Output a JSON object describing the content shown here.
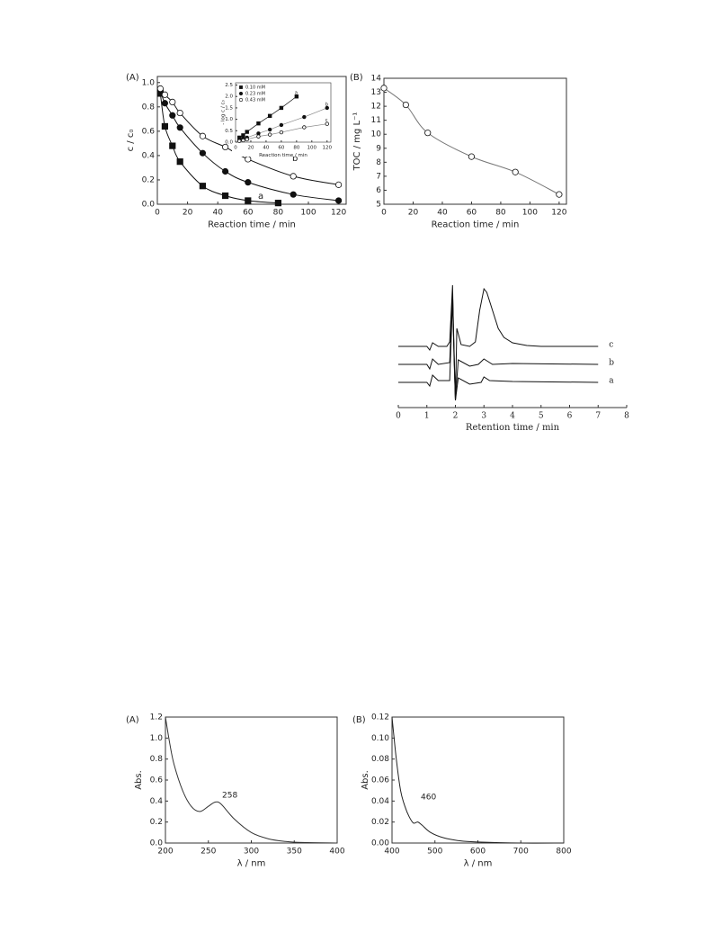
{
  "chart_data": [
    {
      "type": "scatter",
      "panel_label": "(A)",
      "xlabel": "Reaction time / min",
      "ylabel": "c / c₀",
      "frame": true,
      "xlim": [
        0,
        125
      ],
      "ylim": [
        0,
        1.05
      ],
      "xticks": [
        0,
        20,
        40,
        60,
        80,
        100,
        120
      ],
      "yticks": [
        {
          "value": 0,
          "label": "0.0"
        },
        {
          "value": 0.2,
          "label": "0.2"
        },
        {
          "value": 0.4,
          "label": "0.4"
        },
        {
          "value": 0.6,
          "label": "0.6"
        },
        {
          "value": 0.8,
          "label": "0.8"
        },
        {
          "value": 1.0,
          "label": "1.0"
        }
      ],
      "series": [
        {
          "name": "a",
          "marker": "square",
          "filled": true,
          "color": "#111",
          "line_color": "#111",
          "x": [
            2,
            5,
            10,
            15,
            30,
            45,
            60,
            80
          ],
          "values": [
            0.91,
            0.64,
            0.48,
            0.35,
            0.15,
            0.07,
            0.03,
            0.01
          ]
        },
        {
          "name": "b",
          "marker": "circle",
          "filled": true,
          "color": "#111",
          "line_color": "#111",
          "x": [
            2,
            5,
            10,
            15,
            30,
            45,
            60,
            90,
            120
          ],
          "values": [
            0.93,
            0.83,
            0.73,
            0.63,
            0.42,
            0.27,
            0.18,
            0.08,
            0.03
          ]
        },
        {
          "name": "c",
          "marker": "circle",
          "filled": false,
          "color": "#111",
          "line_color": "#111",
          "x": [
            2,
            5,
            10,
            15,
            30,
            45,
            60,
            90,
            120
          ],
          "values": [
            0.95,
            0.9,
            0.84,
            0.75,
            0.56,
            0.47,
            0.37,
            0.23,
            0.16
          ]
        }
      ]
    },
    {
      "type": "scatter",
      "ylabel": "- log c / c₀",
      "xlabel": "Reaction time / min",
      "frame": true,
      "legend": "upper left",
      "xlim": [
        0,
        125
      ],
      "ylim": [
        0,
        2.6
      ],
      "xticks": [
        0,
        20,
        40,
        60,
        80,
        100,
        120
      ],
      "yticks": [
        {
          "value": 0,
          "label": "0.0"
        },
        {
          "value": 0.5,
          "label": "0.5"
        },
        {
          "value": 1.0,
          "label": "1.0"
        },
        {
          "value": 1.5,
          "label": "1.5"
        },
        {
          "value": 2.0,
          "label": "2.0"
        },
        {
          "value": 2.5,
          "label": "2.5"
        }
      ],
      "series": [
        {
          "name": "0.10 mM",
          "label": "a",
          "marker": "square",
          "filled": true,
          "color": "#111",
          "line_color": "#111",
          "x": [
            5,
            10,
            15,
            30,
            45,
            60,
            80
          ],
          "values": [
            0.2,
            0.3,
            0.45,
            0.82,
            1.15,
            1.5,
            2.0
          ]
        },
        {
          "name": "0.23 mM",
          "label": "b",
          "marker": "circle",
          "filled": true,
          "color": "#111",
          "line_color": "#888",
          "x": [
            5,
            10,
            15,
            30,
            45,
            60,
            90,
            120
          ],
          "values": [
            0.1,
            0.15,
            0.2,
            0.38,
            0.55,
            0.75,
            1.1,
            1.5
          ]
        },
        {
          "name": "0.43 mM",
          "label": "c",
          "marker": "circle",
          "filled": false,
          "color": "#111",
          "line_color": "#888",
          "x": [
            5,
            10,
            15,
            30,
            45,
            60,
            90,
            120
          ],
          "values": [
            0.05,
            0.08,
            0.12,
            0.25,
            0.33,
            0.43,
            0.65,
            0.8
          ]
        }
      ]
    },
    {
      "type": "scatter",
      "panel_label": "(B)",
      "xlabel": "Reaction time / min",
      "ylabel": "TOC / mg L⁻¹",
      "frame": true,
      "xlim": [
        0,
        125
      ],
      "ylim": [
        5,
        14
      ],
      "xticks": [
        0,
        20,
        40,
        60,
        80,
        100,
        120
      ],
      "yticks": [
        5,
        6,
        7,
        8,
        9,
        10,
        11,
        12,
        13,
        14
      ],
      "series": [
        {
          "marker": "circle",
          "filled": false,
          "color": "#111",
          "line_color": "#777",
          "x": [
            0,
            15,
            30,
            60,
            90,
            120
          ],
          "values": [
            13.3,
            12.1,
            10.1,
            8.4,
            7.3,
            5.7
          ]
        }
      ]
    },
    {
      "type": "line",
      "xlabel": "Retention time / min",
      "frame": false,
      "font": "serif",
      "xlim": [
        0,
        8
      ],
      "ylim": [
        -25,
        110
      ],
      "xticks": [
        0,
        1,
        2,
        3,
        4,
        5,
        6,
        7,
        8
      ],
      "series": [
        {
          "name": "c",
          "color": "#111",
          "x": [
            0,
            1.0,
            1.1,
            1.2,
            1.4,
            1.7,
            1.8,
            1.9,
            1.95,
            2.0,
            2.05,
            2.2,
            2.5,
            2.7,
            2.85,
            3.0,
            3.1,
            3.3,
            3.5,
            3.7,
            4.0,
            4.5,
            5.0,
            7.0
          ],
          "values": [
            40,
            40,
            36,
            44,
            40,
            40,
            45,
            108,
            30,
            -20,
            60,
            42,
            40,
            45,
            80,
            104,
            100,
            80,
            60,
            50,
            44,
            41,
            40,
            40
          ]
        },
        {
          "name": "b",
          "color": "#111",
          "x": [
            0,
            1.0,
            1.1,
            1.2,
            1.4,
            1.8,
            1.9,
            2.0,
            2.1,
            2.5,
            2.8,
            3.0,
            3.1,
            3.3,
            4.0,
            7.0
          ],
          "values": [
            20,
            20,
            15,
            26,
            20,
            22,
            100,
            -20,
            25,
            18,
            20,
            26,
            24,
            20,
            21,
            20
          ]
        },
        {
          "name": "a",
          "color": "#111",
          "x": [
            0,
            1.0,
            1.1,
            1.2,
            1.4,
            1.8,
            1.9,
            2.0,
            2.1,
            2.5,
            2.9,
            3.0,
            3.2,
            4.0,
            7.0
          ],
          "values": [
            0,
            0,
            -4,
            8,
            2,
            2,
            90,
            -20,
            5,
            -2,
            0,
            6,
            2,
            1,
            0
          ]
        }
      ]
    },
    {
      "type": "line",
      "panel_label": "(A)",
      "xlabel": "λ / nm",
      "ylabel": "Abs.",
      "frame": true,
      "annotation": "258",
      "xlim": [
        200,
        400
      ],
      "ylim": [
        0,
        1.2
      ],
      "xticks": [
        200,
        250,
        300,
        350,
        400
      ],
      "yticks": [
        {
          "value": 0,
          "label": "0.0"
        },
        {
          "value": 0.2,
          "label": "0.2"
        },
        {
          "value": 0.4,
          "label": "0.4"
        },
        {
          "value": 0.6,
          "label": "0.6"
        },
        {
          "value": 0.8,
          "label": "0.8"
        },
        {
          "value": 1.0,
          "label": "1.0"
        },
        {
          "value": 1.2,
          "label": "1.2"
        }
      ],
      "series": [
        {
          "color": "#333",
          "x": [
            200,
            205,
            210,
            220,
            230,
            240,
            250,
            258,
            265,
            280,
            300,
            320,
            340,
            360,
            400
          ],
          "values": [
            1.2,
            0.95,
            0.75,
            0.5,
            0.35,
            0.3,
            0.35,
            0.39,
            0.37,
            0.23,
            0.1,
            0.04,
            0.015,
            0.005,
            0
          ]
        }
      ]
    },
    {
      "type": "line",
      "panel_label": "(B)",
      "xlabel": "λ / nm",
      "ylabel": "Abs.",
      "frame": true,
      "annotation": "460",
      "xlim": [
        400,
        800
      ],
      "ylim": [
        0,
        0.12
      ],
      "xticks": [
        400,
        500,
        600,
        700,
        800
      ],
      "yticks": [
        {
          "value": 0,
          "label": "0.00"
        },
        {
          "value": 0.02,
          "label": "0.02"
        },
        {
          "value": 0.04,
          "label": "0.04"
        },
        {
          "value": 0.06,
          "label": "0.06"
        },
        {
          "value": 0.08,
          "label": "0.08"
        },
        {
          "value": 0.1,
          "label": "0.10"
        },
        {
          "value": 0.12,
          "label": "0.12"
        }
      ],
      "series": [
        {
          "color": "#222",
          "x": [
            400,
            410,
            420,
            430,
            440,
            450,
            460,
            470,
            490,
            520,
            560,
            600,
            700,
            800
          ],
          "values": [
            0.12,
            0.08,
            0.05,
            0.035,
            0.025,
            0.019,
            0.02,
            0.017,
            0.01,
            0.005,
            0.002,
            0.001,
            0,
            0
          ]
        }
      ]
    }
  ]
}
